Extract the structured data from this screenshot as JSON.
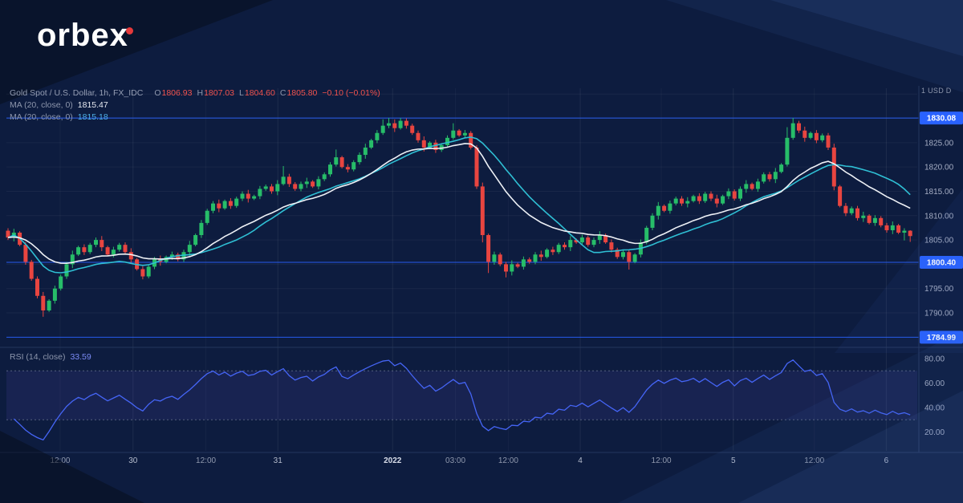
{
  "logo": {
    "text": "orbex"
  },
  "chart": {
    "legend": {
      "symbol_title": "Gold Spot / U.S. Dollar, 1h, FX_IDC",
      "ohlc": {
        "o_label": "O",
        "o": "1806.93",
        "h_label": "H",
        "h": "1807.03",
        "l_label": "L",
        "l": "1804.60",
        "c_label": "C",
        "c": "1805.80",
        "change": "−0.10 (−0.01%)"
      },
      "ma1": {
        "label": "MA (20, close, 0)",
        "value": "1815.47"
      },
      "ma2": {
        "label": "MA (20, close, 0)",
        "value": "1815.18"
      }
    },
    "rsi_legend": {
      "label": "RSI (14, close)",
      "value": "33.59"
    },
    "axis_note": "1 USD D"
  },
  "theme": {
    "background": "#0d1c3f",
    "bull": "#27bd69",
    "bear": "#e84540",
    "ma_fast": "#eef1f6",
    "ma_slow": "#2fbfd4",
    "level_blue": "#2962ff",
    "rsi_line": "#4565f6",
    "axis_text": "#a6aec4"
  },
  "chart_data": {
    "type": "candlestick",
    "title": "Gold Spot / U.S. Dollar",
    "timeframe": "1h",
    "source": "FX_IDC",
    "last_ohlc": {
      "open": 1806.93,
      "high": 1807.03,
      "low": 1804.6,
      "close": 1805.8,
      "change": -0.1,
      "change_pct": -0.01
    },
    "indicators": [
      {
        "name": "MA",
        "params": [
          20,
          "close",
          0
        ],
        "last_value": 1815.47
      },
      {
        "name": "MA",
        "params": [
          20,
          "close",
          0
        ],
        "last_value": 1815.18
      },
      {
        "name": "RSI",
        "params": [
          14,
          "close"
        ],
        "last_value": 33.59,
        "overbought": 70,
        "oversold": 30
      }
    ],
    "levels": [
      {
        "price": 1830.08,
        "label": "1830.08"
      },
      {
        "price": 1800.4,
        "label": "1800.40"
      },
      {
        "price": 1784.99,
        "label": "1784.99"
      }
    ],
    "price_axis_labels": [
      {
        "price": 1825,
        "text": "1825.00"
      },
      {
        "price": 1820,
        "text": "1820.00"
      },
      {
        "price": 1815,
        "text": "1815.00"
      },
      {
        "price": 1810,
        "text": "1810.00"
      },
      {
        "price": 1805,
        "text": "1805.00"
      },
      {
        "price": 1795,
        "text": "1795.00"
      },
      {
        "price": 1790,
        "text": "1790.00"
      }
    ],
    "h_gridlines": [
      1790,
      1795,
      1800,
      1805,
      1810,
      1815,
      1820,
      1825,
      1830,
      1835
    ],
    "price_range": [
      1783.4,
      1836.2
    ],
    "rsi_range": [
      4.6,
      87.2
    ],
    "rsi_band": [
      70,
      30
    ],
    "rsi_axis_labels": [
      {
        "value": 80,
        "text": "80.00"
      },
      {
        "value": 60,
        "text": "60.00"
      },
      {
        "value": 40,
        "text": "40.00"
      },
      {
        "value": 20,
        "text": "20.00"
      }
    ],
    "time_axis_labels": [
      {
        "text": "12:00",
        "f": 0.059,
        "major": false
      },
      {
        "text": "30",
        "f": 0.139,
        "major": true
      },
      {
        "text": "12:00",
        "f": 0.219,
        "major": false
      },
      {
        "text": "31",
        "f": 0.298,
        "major": true
      },
      {
        "text": "2022",
        "f": 0.424,
        "major": true
      },
      {
        "text": "03:00",
        "f": 0.493,
        "major": false
      },
      {
        "text": "12:00",
        "f": 0.551,
        "major": false
      },
      {
        "text": "4",
        "f": 0.63,
        "major": true
      },
      {
        "text": "12:00",
        "f": 0.719,
        "major": false
      },
      {
        "text": "5",
        "f": 0.798,
        "major": true
      },
      {
        "text": "12:00",
        "f": 0.887,
        "major": false
      },
      {
        "text": "6",
        "f": 0.966,
        "major": true
      }
    ],
    "candles": [
      [
        1806.9,
        1807.4,
        1805.0,
        1805.5
      ],
      [
        1805.5,
        1807.3,
        1804.7,
        1806.5
      ],
      [
        1806.5,
        1806.8,
        1803.7,
        1804.0
      ],
      [
        1804.0,
        1804.6,
        1799.9,
        1800.5
      ],
      [
        1800.5,
        1800.9,
        1796.6,
        1797.0
      ],
      [
        1797.0,
        1797.5,
        1793.0,
        1793.5
      ],
      [
        1793.5,
        1794.3,
        1789.2,
        1790.5
      ],
      [
        1790.5,
        1792.8,
        1790.2,
        1792.5
      ],
      [
        1792.5,
        1795.6,
        1791.9,
        1795.0
      ],
      [
        1795.0,
        1797.9,
        1794.6,
        1797.5
      ],
      [
        1797.5,
        1800.5,
        1797.0,
        1800.0
      ],
      [
        1800.0,
        1802.8,
        1799.2,
        1802.0
      ],
      [
        1802.0,
        1803.8,
        1801.7,
        1803.5
      ],
      [
        1803.5,
        1804.1,
        1801.9,
        1802.5
      ],
      [
        1802.5,
        1804.4,
        1802.1,
        1804.0
      ],
      [
        1804.0,
        1805.5,
        1803.5,
        1805.0
      ],
      [
        1805.0,
        1805.8,
        1802.7,
        1803.5
      ],
      [
        1803.5,
        1803.8,
        1801.7,
        1802.0
      ],
      [
        1802.0,
        1803.6,
        1801.4,
        1803.0
      ],
      [
        1803.0,
        1804.4,
        1802.6,
        1804.0
      ],
      [
        1804.0,
        1804.5,
        1802.0,
        1802.5
      ],
      [
        1802.5,
        1803.3,
        1800.2,
        1801.0
      ],
      [
        1801.0,
        1801.3,
        1798.7,
        1799.0
      ],
      [
        1799.0,
        1799.6,
        1796.9,
        1797.5
      ],
      [
        1797.5,
        1799.9,
        1797.1,
        1799.5
      ],
      [
        1799.5,
        1801.5,
        1799.0,
        1801.0
      ],
      [
        1801.0,
        1801.8,
        1799.7,
        1800.5
      ],
      [
        1800.5,
        1801.8,
        1800.2,
        1801.5
      ],
      [
        1801.5,
        1802.6,
        1800.9,
        1802.0
      ],
      [
        1802.0,
        1802.4,
        1800.6,
        1801.0
      ],
      [
        1801.0,
        1803.0,
        1800.5,
        1802.5
      ],
      [
        1802.5,
        1804.8,
        1801.7,
        1804.0
      ],
      [
        1804.0,
        1806.3,
        1803.7,
        1806.0
      ],
      [
        1806.0,
        1809.1,
        1805.4,
        1808.5
      ],
      [
        1808.5,
        1811.4,
        1808.1,
        1811.0
      ],
      [
        1811.0,
        1813.0,
        1810.5,
        1812.5
      ],
      [
        1812.5,
        1813.3,
        1810.7,
        1811.5
      ],
      [
        1811.5,
        1813.3,
        1811.2,
        1813.0
      ],
      [
        1813.0,
        1813.6,
        1811.4,
        1812.0
      ],
      [
        1812.0,
        1813.9,
        1811.6,
        1813.5
      ],
      [
        1813.5,
        1815.0,
        1813.0,
        1814.5
      ],
      [
        1814.5,
        1815.3,
        1812.7,
        1813.5
      ],
      [
        1813.5,
        1814.3,
        1813.2,
        1814.0
      ],
      [
        1814.0,
        1816.1,
        1813.4,
        1815.5
      ],
      [
        1815.5,
        1816.4,
        1815.1,
        1816.0
      ],
      [
        1816.0,
        1816.5,
        1814.5,
        1815.0
      ],
      [
        1815.0,
        1817.3,
        1814.2,
        1816.5
      ],
      [
        1816.5,
        1820.2,
        1816.2,
        1818.0
      ],
      [
        1818.0,
        1818.6,
        1815.9,
        1816.5
      ],
      [
        1816.5,
        1816.9,
        1815.1,
        1815.5
      ],
      [
        1815.5,
        1817.0,
        1815.0,
        1816.5
      ],
      [
        1816.5,
        1817.8,
        1815.7,
        1817.0
      ],
      [
        1817.0,
        1817.3,
        1815.7,
        1816.0
      ],
      [
        1816.0,
        1818.1,
        1815.4,
        1817.5
      ],
      [
        1817.5,
        1818.9,
        1817.1,
        1818.5
      ],
      [
        1818.5,
        1821.0,
        1818.0,
        1820.5
      ],
      [
        1820.5,
        1823.6,
        1820.1,
        1822.0
      ],
      [
        1822.0,
        1822.3,
        1819.7,
        1820.0
      ],
      [
        1820.0,
        1820.6,
        1818.9,
        1819.5
      ],
      [
        1819.5,
        1821.4,
        1819.1,
        1821.0
      ],
      [
        1821.0,
        1823.0,
        1820.5,
        1822.5
      ],
      [
        1822.5,
        1824.8,
        1821.7,
        1824.0
      ],
      [
        1824.0,
        1825.8,
        1823.7,
        1825.5
      ],
      [
        1825.5,
        1827.6,
        1824.9,
        1827.0
      ],
      [
        1827.0,
        1829.8,
        1826.6,
        1828.5
      ],
      [
        1828.5,
        1830.1,
        1828.0,
        1829.0
      ],
      [
        1829.0,
        1829.8,
        1827.2,
        1828.0
      ],
      [
        1828.0,
        1830.1,
        1827.7,
        1829.5
      ],
      [
        1829.5,
        1830.0,
        1827.9,
        1828.5
      ],
      [
        1828.5,
        1828.9,
        1826.6,
        1827.0
      ],
      [
        1827.0,
        1827.5,
        1825.0,
        1825.5
      ],
      [
        1825.5,
        1826.3,
        1823.2,
        1824.0
      ],
      [
        1824.0,
        1825.3,
        1823.7,
        1825.0
      ],
      [
        1825.0,
        1825.6,
        1822.9,
        1823.5
      ],
      [
        1823.5,
        1824.9,
        1823.1,
        1824.5
      ],
      [
        1824.5,
        1826.5,
        1824.0,
        1826.0
      ],
      [
        1826.0,
        1829.0,
        1825.6,
        1827.5
      ],
      [
        1827.5,
        1827.8,
        1826.2,
        1826.5
      ],
      [
        1826.5,
        1827.6,
        1825.9,
        1827.0
      ],
      [
        1827.0,
        1827.4,
        1823.6,
        1824.0
      ],
      [
        1824.0,
        1824.5,
        1815.5,
        1816.0
      ],
      [
        1816.0,
        1816.8,
        1804.5,
        1806.0
      ],
      [
        1806.0,
        1806.3,
        1798.2,
        1800.5
      ],
      [
        1800.5,
        1802.6,
        1799.9,
        1802.0
      ],
      [
        1802.0,
        1802.4,
        1799.6,
        1800.0
      ],
      [
        1800.0,
        1800.5,
        1797.3,
        1798.5
      ],
      [
        1798.5,
        1800.8,
        1797.7,
        1800.0
      ],
      [
        1800.0,
        1800.3,
        1799.2,
        1799.5
      ],
      [
        1799.5,
        1801.6,
        1798.9,
        1801.0
      ],
      [
        1801.0,
        1801.4,
        1800.1,
        1800.5
      ],
      [
        1800.5,
        1802.5,
        1800.0,
        1802.0
      ],
      [
        1802.0,
        1802.8,
        1800.7,
        1801.5
      ],
      [
        1801.5,
        1803.3,
        1801.2,
        1803.0
      ],
      [
        1803.0,
        1803.6,
        1801.9,
        1802.5
      ],
      [
        1802.5,
        1804.4,
        1802.1,
        1804.0
      ],
      [
        1804.0,
        1804.5,
        1803.0,
        1803.5
      ],
      [
        1803.5,
        1805.8,
        1802.7,
        1805.0
      ],
      [
        1805.0,
        1805.3,
        1804.2,
        1804.5
      ],
      [
        1804.5,
        1806.1,
        1803.9,
        1805.5
      ],
      [
        1805.5,
        1805.9,
        1803.6,
        1804.0
      ],
      [
        1804.0,
        1805.5,
        1803.5,
        1805.0
      ],
      [
        1805.0,
        1806.8,
        1804.2,
        1806.0
      ],
      [
        1806.0,
        1806.3,
        1804.2,
        1804.5
      ],
      [
        1804.5,
        1805.1,
        1802.4,
        1803.0
      ],
      [
        1803.0,
        1803.4,
        1801.1,
        1801.5
      ],
      [
        1801.5,
        1803.0,
        1801.0,
        1802.5
      ],
      [
        1802.5,
        1802.9,
        1798.9,
        1800.5
      ],
      [
        1800.5,
        1802.3,
        1800.2,
        1802.0
      ],
      [
        1802.0,
        1805.1,
        1801.4,
        1804.5
      ],
      [
        1804.5,
        1807.9,
        1804.1,
        1807.5
      ],
      [
        1807.5,
        1810.5,
        1807.0,
        1810.0
      ],
      [
        1810.0,
        1812.8,
        1809.2,
        1812.0
      ],
      [
        1812.0,
        1812.3,
        1810.7,
        1811.0
      ],
      [
        1811.0,
        1813.1,
        1810.4,
        1812.5
      ],
      [
        1812.5,
        1813.9,
        1812.1,
        1813.5
      ],
      [
        1813.5,
        1814.0,
        1812.0,
        1812.5
      ],
      [
        1812.5,
        1813.8,
        1811.7,
        1813.0
      ],
      [
        1813.0,
        1814.3,
        1812.7,
        1814.0
      ],
      [
        1814.0,
        1814.6,
        1812.4,
        1813.0
      ],
      [
        1813.0,
        1814.9,
        1812.6,
        1814.5
      ],
      [
        1814.5,
        1815.0,
        1813.0,
        1813.5
      ],
      [
        1813.5,
        1814.3,
        1811.7,
        1812.5
      ],
      [
        1812.5,
        1814.3,
        1812.2,
        1814.0
      ],
      [
        1814.0,
        1815.6,
        1813.4,
        1815.0
      ],
      [
        1815.0,
        1815.4,
        1813.1,
        1813.5
      ],
      [
        1813.5,
        1816.0,
        1813.0,
        1815.5
      ],
      [
        1815.5,
        1817.3,
        1814.7,
        1816.5
      ],
      [
        1816.5,
        1816.8,
        1815.2,
        1815.5
      ],
      [
        1815.5,
        1817.6,
        1814.9,
        1817.0
      ],
      [
        1817.0,
        1818.9,
        1816.6,
        1818.5
      ],
      [
        1818.5,
        1819.0,
        1817.0,
        1817.5
      ],
      [
        1817.5,
        1819.8,
        1816.7,
        1819.0
      ],
      [
        1819.0,
        1820.8,
        1818.7,
        1820.5
      ],
      [
        1820.5,
        1828.2,
        1820.1,
        1826.0
      ],
      [
        1826.0,
        1830.1,
        1825.6,
        1829.0
      ],
      [
        1829.0,
        1829.5,
        1827.0,
        1827.5
      ],
      [
        1827.5,
        1828.3,
        1825.2,
        1826.0
      ],
      [
        1826.0,
        1827.3,
        1825.7,
        1827.0
      ],
      [
        1827.0,
        1827.6,
        1824.9,
        1825.5
      ],
      [
        1825.5,
        1826.9,
        1825.1,
        1826.5
      ],
      [
        1826.5,
        1827.0,
        1823.5,
        1824.0
      ],
      [
        1824.0,
        1824.8,
        1815.2,
        1816.0
      ],
      [
        1816.0,
        1816.3,
        1811.7,
        1812.0
      ],
      [
        1812.0,
        1812.6,
        1809.9,
        1810.5
      ],
      [
        1810.5,
        1811.9,
        1810.1,
        1811.5
      ],
      [
        1811.5,
        1812.0,
        1809.0,
        1809.5
      ],
      [
        1809.5,
        1810.8,
        1808.7,
        1810.0
      ],
      [
        1810.0,
        1810.3,
        1808.2,
        1808.5
      ],
      [
        1808.5,
        1810.1,
        1807.9,
        1809.5
      ],
      [
        1809.5,
        1809.9,
        1807.6,
        1808.0
      ],
      [
        1808.0,
        1808.5,
        1806.5,
        1807.0
      ],
      [
        1807.0,
        1808.8,
        1806.2,
        1808.0
      ],
      [
        1808.0,
        1808.3,
        1806.2,
        1806.5
      ],
      [
        1806.5,
        1807.4,
        1804.9,
        1806.9
      ],
      [
        1806.9,
        1807.0,
        1804.6,
        1805.8
      ]
    ]
  }
}
